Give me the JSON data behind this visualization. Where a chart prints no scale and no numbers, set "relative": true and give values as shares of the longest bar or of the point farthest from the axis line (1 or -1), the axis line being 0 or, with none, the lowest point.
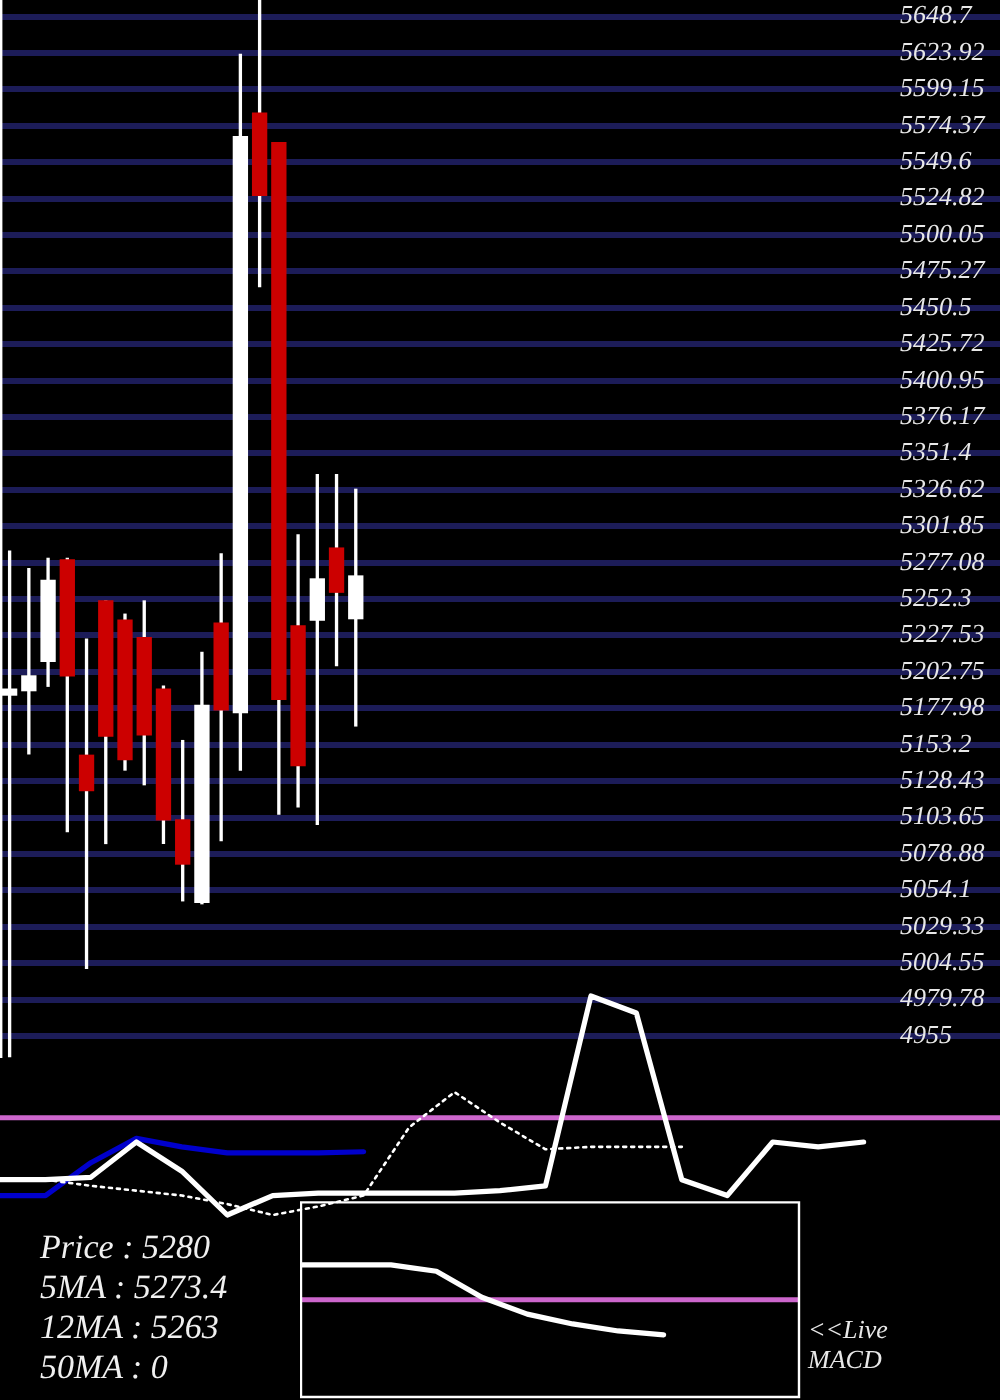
{
  "chart_data": [
    {
      "type": "candlestick",
      "categories": [
        null,
        null,
        null,
        null,
        null,
        null,
        null,
        null,
        null,
        null,
        null,
        null,
        null,
        null,
        null,
        null,
        null,
        null,
        null,
        null,
        null,
        null,
        null,
        null,
        null,
        null,
        null,
        null,
        null,
        null,
        null,
        null,
        null,
        null,
        null,
        null,
        null,
        null,
        null,
        null,
        null,
        null,
        null,
        null,
        null,
        null,
        null,
        null,
        null,
        null,
        null,
        null
      ],
      "ohlc": [
        [
          5187,
          5285,
          4941,
          5191
        ],
        [
          5190,
          5273,
          5147,
          5200
        ],
        [
          5210,
          5280,
          5193,
          5265
        ],
        [
          5279,
          5280,
          5094,
          5200
        ],
        [
          5146,
          5225,
          5001,
          5122
        ],
        [
          5251,
          5251,
          5086,
          5159
        ],
        [
          5238,
          5242,
          5136,
          5143
        ],
        [
          5226,
          5251,
          5126,
          5160
        ],
        [
          5191,
          5193,
          5086,
          5102
        ],
        [
          5102,
          5156,
          5047,
          5072
        ],
        [
          5046,
          5216,
          5045,
          5180
        ],
        [
          5236,
          5283,
          5088,
          5177
        ],
        [
          5175,
          5623,
          5136,
          5567
        ],
        [
          5583,
          5660,
          5465,
          5527
        ],
        [
          5563,
          5563,
          5106,
          5184
        ],
        [
          5234,
          5296,
          5111,
          5139
        ],
        [
          5238,
          5337,
          5099,
          5266
        ],
        [
          5287,
          5337,
          5207,
          5257
        ],
        [
          5239,
          5327,
          5166,
          5268
        ],
        null,
        null,
        null,
        null,
        null,
        null,
        null,
        null,
        null,
        null,
        null,
        null,
        null,
        null,
        null,
        null,
        null,
        null,
        null,
        null,
        null,
        null,
        null,
        null,
        null,
        null,
        null,
        null,
        null,
        null,
        null,
        null,
        null
      ],
      "color": "#ffffff",
      "colors": [
        "#ffffff",
        "#ffffff",
        "#ffffff",
        "#cc0000",
        "#cc0000",
        "#cc0000",
        "#cc0000",
        "#cc0000",
        "#cc0000",
        "#cc0000",
        "#ffffff",
        "#cc0000",
        "#ffffff",
        "#cc0000",
        "#cc0000",
        "#cc0000",
        "#ffffff",
        "#cc0000",
        "#ffffff",
        null,
        null,
        null,
        null,
        null,
        null,
        null,
        null,
        null,
        null,
        null,
        null,
        null,
        null,
        null,
        null,
        null,
        null,
        null,
        null,
        null,
        null,
        null,
        null,
        null,
        null,
        null,
        null,
        null,
        null,
        null,
        null,
        null
      ],
      "ylim": [
        4940,
        5660
      ],
      "yticks": [
        5648.7,
        5623.92,
        5599.15,
        5574.37,
        5549.6,
        5524.82,
        5500.05,
        5475.27,
        5450.5,
        5425.72,
        5400.95,
        5376.17,
        5351.4,
        5326.62,
        5301.85,
        5277.08,
        5252.3,
        5227.53,
        5202.75,
        5177.98,
        5153.2,
        5128.43,
        5103.65,
        5078.88,
        5054.1,
        5029.33,
        5004.55,
        4979.78,
        4955
      ],
      "grid": "y"
    },
    {
      "type": "line",
      "relative": true,
      "marker": "none",
      "categories": [
        null,
        null,
        null,
        null,
        null,
        null,
        null,
        null,
        null,
        null,
        null,
        null,
        null,
        null,
        null,
        null,
        null,
        null,
        null,
        null,
        null,
        null,
        null
      ],
      "series": [
        {
          "color": "#ffffff",
          "values": [
            -0.51,
            -0.51,
            -0.49,
            -0.2,
            -0.44,
            -0.8,
            -0.64,
            -0.62,
            -0.62,
            -0.62,
            -0.62,
            -0.6,
            -0.56,
            1,
            0.86,
            -0.51,
            -0.64,
            -0.2,
            -0.24,
            -0.2,
            null,
            null,
            null
          ]
        },
        {
          "color": "#ffffff",
          "line_style": "dotted",
          "values": [
            null,
            -0.51,
            -0.56,
            -0.6,
            -0.64,
            -0.71,
            -0.8,
            -0.73,
            -0.64,
            -0.08,
            0.21,
            -0.04,
            -0.26,
            -0.24,
            -0.24,
            -0.24,
            null,
            null,
            null,
            null,
            null,
            null,
            null
          ]
        },
        {
          "color": "#0000cc",
          "values": [
            -0.64,
            -0.64,
            -0.37,
            -0.17,
            -0.24,
            -0.29,
            -0.29,
            -0.29,
            -0.28,
            null,
            null,
            null,
            null,
            null,
            null,
            null,
            null,
            null,
            null,
            null,
            null,
            null,
            null
          ]
        }
      ],
      "ref_lines": [
        {
          "axis": "y",
          "value": 0,
          "color": "#cc66cc"
        }
      ]
    },
    {
      "type": "line",
      "relative": true,
      "marker": "none",
      "categories": [
        null,
        null,
        null,
        null,
        null,
        null,
        null,
        null,
        null,
        null,
        null,
        null
      ],
      "series": [
        {
          "color": "#ffffff",
          "values": [
            0.99,
            0.99,
            0.99,
            0.81,
            0.07,
            -0.41,
            -0.69,
            -0.89,
            -1,
            null,
            null,
            null
          ]
        }
      ],
      "ref_lines": [
        {
          "axis": "y",
          "value": 0,
          "color": "#cc66cc"
        }
      ],
      "annotations": [
        "<<Live MACD"
      ]
    },
    {
      "type": "other",
      "annotations": [
        "Price : 5280",
        "5MA : 5273.4",
        "12MA : 5263",
        "50MA : 0"
      ]
    }
  ]
}
